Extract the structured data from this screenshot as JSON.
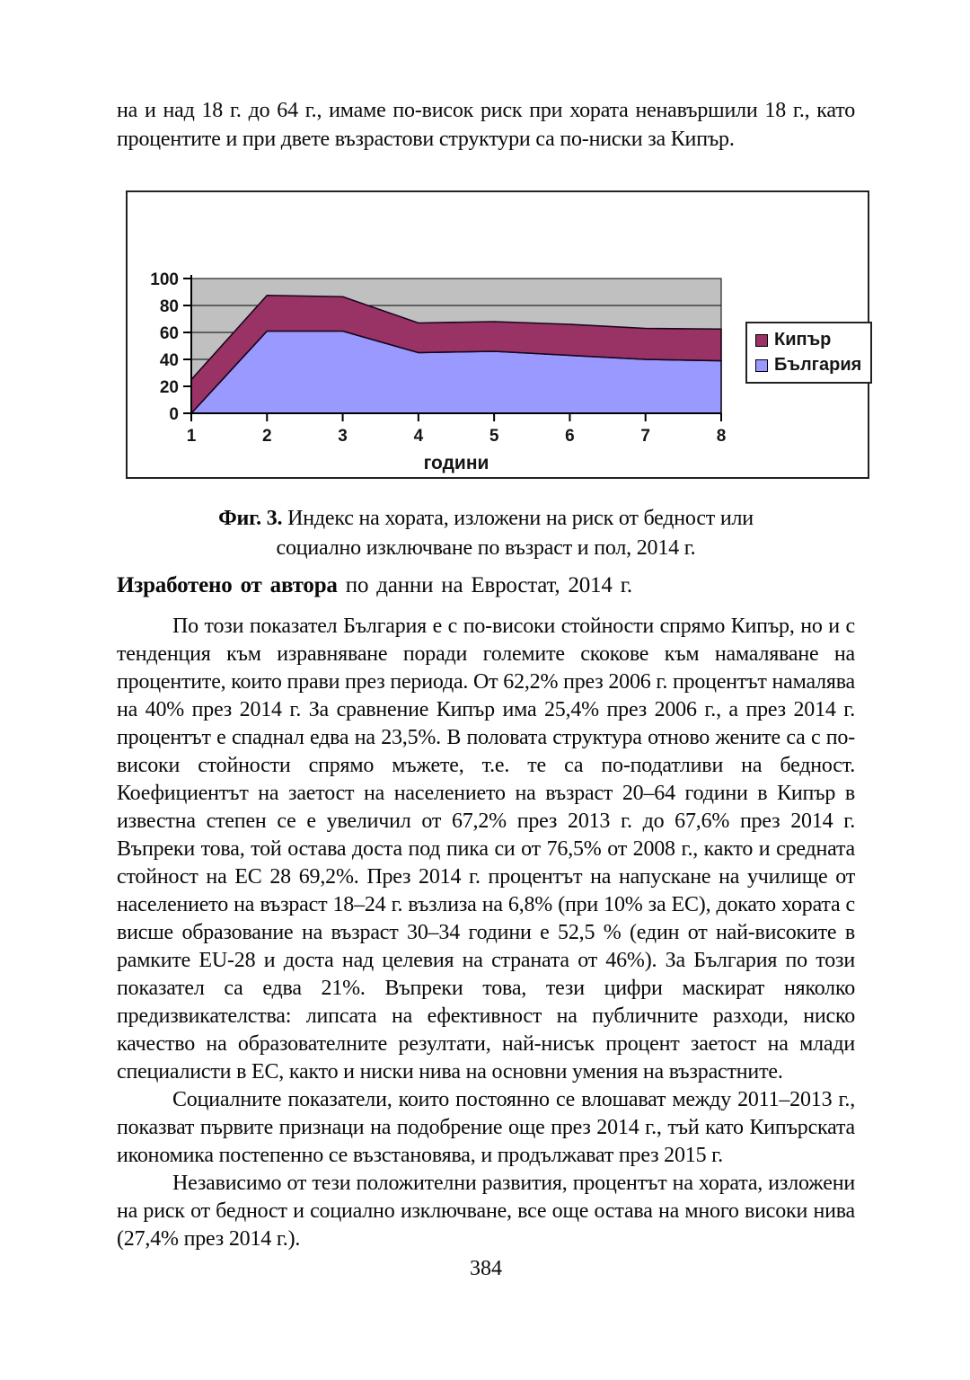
{
  "page": {
    "number": "384"
  },
  "intro": {
    "text": "на и над 18 г. до 64 г., имаме по-висок риск при хората ненавършили 18 г., като процентите и при двете възрастови структури са по-ниски за Кипър."
  },
  "figure": {
    "caption_prefix": "Фиг. 3.",
    "caption_line1": "Индекс на хората, изложени на риск от бедност или",
    "caption_line2": "социално изключване по възраст и пол, 2014 г."
  },
  "credit": {
    "bold": "Изработено от автора",
    "rest": "по данни на Евростат, 2014 г."
  },
  "body": {
    "paragraphs": [
      "По този показател България е с по-високи стойности спрямо Кипър, но и с тенденция към изравняване поради големите скокове към намаляване на процентите, които прави през периода. От 62,2% през 2006 г. процентът намалява на 40% през 2014 г. За сравнение Кипър има 25,4% през 2006 г., а през 2014 г. процентът е спаднал едва на 23,5%. В половата структура отново жените са с по-високи стойности спрямо мъжете, т.е. те са по-податливи на бедност. Коефициентът на заетост на населението на възраст 20–64 години в Кипър в известна степен се е увеличил от 67,2% през 2013 г. до 67,6% през 2014 г. Въпреки това, той остава доста под пика си от 76,5% от 2008 г., както и средната стойност на ЕС 28 69,2%. През 2014 г. процентът на напускане на училище от населението на възраст 18–24 г. възлиза на 6,8% (при 10% за ЕС), докато хората с висше образование на възраст 30–34 години е 52,5 % (един от най-високите в рамките EU-28 и доста над целевия на страната от 46%). За България по този показател са едва 21%. Въпреки това, тези цифри маскират няколко предизвикателства: липсата на ефективност на публичните разходи, ниско качество на образователните резултати, най-нисък процент заетост на млади специалисти в ЕС, както и ниски нива на основни умения на възрастните.",
      "Социалните показатели, които постоянно се влошават между 2011–2013 г., показват първите признаци на подобрение още през 2014 г., тъй като Кипърската икономика постепенно се възстановява, и продължават през 2015 г.",
      "Независимо от тези положителни развития, процентът на хората, изложени на риск от бедност и социално изключване, все още остава на много високи нива (27,4% през 2014 г.)."
    ]
  },
  "chart_data": {
    "type": "area",
    "stacked": true,
    "x": [
      1,
      2,
      3,
      4,
      5,
      6,
      7,
      8
    ],
    "xlabel": "години",
    "ylabel": "",
    "ylim": [
      0,
      100
    ],
    "yticks": [
      0,
      20,
      40,
      60,
      80,
      100
    ],
    "grid": "horizontal",
    "plot_bg": "#C0C0C0",
    "series": [
      {
        "name": "България",
        "color": "#9999FF",
        "values": [
          0,
          61,
          61,
          45,
          46,
          43,
          40,
          39
        ]
      },
      {
        "name": "Кипър",
        "color": "#993366",
        "values": [
          25,
          26.5,
          25.5,
          22,
          22,
          23,
          23,
          23.5
        ]
      }
    ],
    "legend_order": [
      "Кипър",
      "България"
    ],
    "legend_position": "right"
  }
}
